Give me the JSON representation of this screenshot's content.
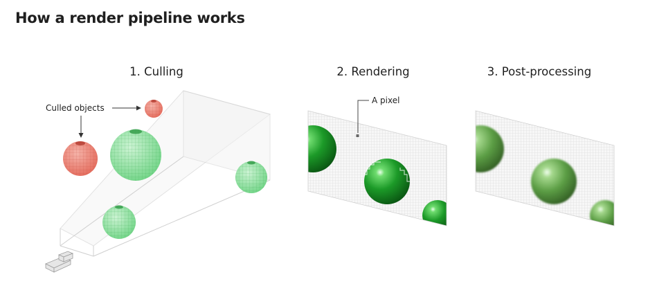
{
  "title": "How a render pipeline works",
  "panels": [
    {
      "id": "culling",
      "label": "1. Culling"
    },
    {
      "id": "rendering",
      "label": "2. Rendering"
    },
    {
      "id": "post",
      "label": "3. Post-processing"
    }
  ],
  "annotations": {
    "culled_objects": "Culled objects",
    "a_pixel": "A pixel"
  },
  "colors": {
    "culled": "#e8685a",
    "visible": "#52c96a",
    "shaded_dark": "#0e6b1b",
    "shaded_mid": "#1f9a2d",
    "post_mid": "#6aa84f",
    "grid": "#d8d8d8"
  }
}
